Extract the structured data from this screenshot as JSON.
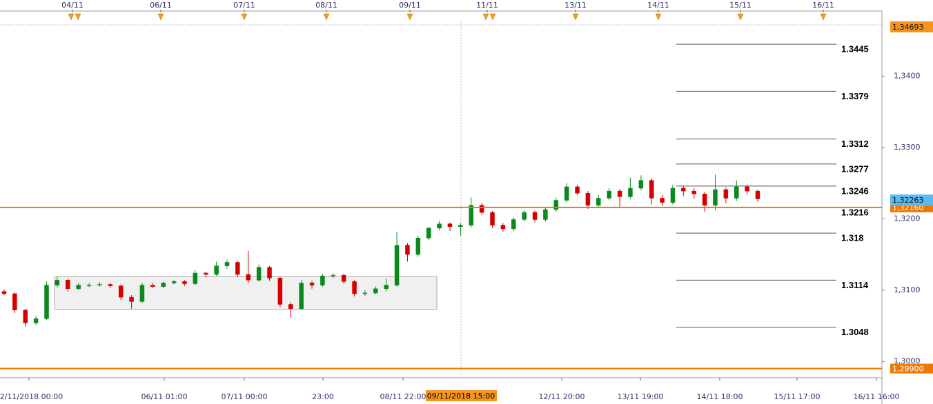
{
  "chart_data": {
    "type": "candlestick",
    "ylim": [
      1.2977,
      1.3478
    ],
    "yticks": [
      {
        "value": 1.34,
        "label": "1,3400"
      },
      {
        "value": 1.33,
        "label": "1,3300"
      },
      {
        "value": 1.32,
        "label": "1,3200"
      },
      {
        "value": 1.31,
        "label": "1,3100"
      },
      {
        "value": 1.3,
        "label": "1,3000"
      }
    ],
    "top_axis_labels": [
      "04/11",
      "06/11",
      "07/11",
      "08/11",
      "09/11",
      "11/11",
      "13/11",
      "14/11",
      "15/11",
      "16/11"
    ],
    "bottom_axis_labels": [
      "02/11/2018 00:00",
      "06/11 01:00",
      "07/11 00:00",
      "23:00",
      "08/11 22:00",
      "12/11 20:00",
      "13/11 19:00",
      "14/11 18:00",
      "15/11 17:00",
      "16/11 16:00"
    ],
    "crosshair_label": "09/11/2018 15:00",
    "up_color": "#0a8a1a",
    "down_color": "#d40000",
    "candles": [
      [
        1.3098,
        1.3101,
        1.3093,
        1.3095
      ],
      [
        1.3095,
        1.3097,
        1.3068,
        1.3072
      ],
      [
        1.3072,
        1.3074,
        1.3049,
        1.3054
      ],
      [
        1.3054,
        1.3063,
        1.3051,
        1.306
      ],
      [
        1.306,
        1.3112,
        1.3058,
        1.3107
      ],
      [
        1.3107,
        1.3119,
        1.3104,
        1.3114
      ],
      [
        1.3114,
        1.3116,
        1.3098,
        1.3102
      ],
      [
        1.3102,
        1.311,
        1.31,
        1.3107
      ],
      [
        1.3107,
        1.311,
        1.3104,
        1.3107
      ],
      [
        1.3107,
        1.3111,
        1.3105,
        1.3108
      ],
      [
        1.3108,
        1.311,
        1.3103,
        1.3106
      ],
      [
        1.3106,
        1.3108,
        1.3086,
        1.309
      ],
      [
        1.309,
        1.3093,
        1.3074,
        1.3084
      ],
      [
        1.3084,
        1.311,
        1.3082,
        1.3107
      ],
      [
        1.3107,
        1.311,
        1.3103,
        1.3105
      ],
      [
        1.3105,
        1.3112,
        1.3103,
        1.311
      ],
      [
        1.311,
        1.3114,
        1.3108,
        1.3112
      ],
      [
        1.3112,
        1.3114,
        1.3106,
        1.3109
      ],
      [
        1.3109,
        1.3128,
        1.3107,
        1.3124
      ],
      [
        1.3124,
        1.3126,
        1.3118,
        1.3122
      ],
      [
        1.3122,
        1.314,
        1.312,
        1.3134
      ],
      [
        1.3134,
        1.3143,
        1.313,
        1.3139
      ],
      [
        1.3139,
        1.3141,
        1.3118,
        1.3122
      ],
      [
        1.3122,
        1.3155,
        1.311,
        1.3114
      ],
      [
        1.3114,
        1.3136,
        1.3112,
        1.3132
      ],
      [
        1.3132,
        1.3134,
        1.3113,
        1.3117
      ],
      [
        1.3117,
        1.3119,
        1.3076,
        1.308
      ],
      [
        1.308,
        1.3083,
        1.3061,
        1.3074
      ],
      [
        1.3074,
        1.3114,
        1.3072,
        1.311
      ],
      [
        1.311,
        1.3113,
        1.3102,
        1.3107
      ],
      [
        1.3107,
        1.3123,
        1.3105,
        1.312
      ],
      [
        1.312,
        1.3124,
        1.3117,
        1.3121
      ],
      [
        1.3121,
        1.3123,
        1.3109,
        1.3112
      ],
      [
        1.3112,
        1.3114,
        1.3091,
        1.3095
      ],
      [
        1.3095,
        1.31,
        1.3092,
        1.3096
      ],
      [
        1.3096,
        1.3105,
        1.3094,
        1.3102
      ],
      [
        1.3102,
        1.3116,
        1.3098,
        1.3107
      ],
      [
        1.3107,
        1.3181,
        1.3105,
        1.3163
      ],
      [
        1.3163,
        1.3166,
        1.314,
        1.315
      ],
      [
        1.315,
        1.3176,
        1.3147,
        1.3173
      ],
      [
        1.3173,
        1.3189,
        1.317,
        1.3187
      ],
      [
        1.3187,
        1.3197,
        1.3184,
        1.3193
      ],
      [
        1.3193,
        1.3195,
        1.3183,
        1.3189
      ],
      [
        1.3189,
        1.3194,
        1.3176,
        1.3191
      ],
      [
        1.3191,
        1.323,
        1.3188,
        1.3219
      ],
      [
        1.3219,
        1.3222,
        1.3205,
        1.3209
      ],
      [
        1.3209,
        1.3211,
        1.3187,
        1.3191
      ],
      [
        1.3191,
        1.3194,
        1.3182,
        1.3186
      ],
      [
        1.3186,
        1.3202,
        1.3183,
        1.3199
      ],
      [
        1.3199,
        1.3212,
        1.3196,
        1.3209
      ],
      [
        1.3209,
        1.3212,
        1.3195,
        1.3199
      ],
      [
        1.3199,
        1.3217,
        1.3196,
        1.3213
      ],
      [
        1.3213,
        1.323,
        1.321,
        1.3226
      ],
      [
        1.3226,
        1.325,
        1.3223,
        1.3245
      ],
      [
        1.3245,
        1.3248,
        1.3233,
        1.3236
      ],
      [
        1.3236,
        1.3239,
        1.3214,
        1.3219
      ],
      [
        1.3219,
        1.3233,
        1.3216,
        1.3229
      ],
      [
        1.3229,
        1.3243,
        1.3226,
        1.3239
      ],
      [
        1.3239,
        1.3242,
        1.3216,
        1.3231
      ],
      [
        1.3231,
        1.3258,
        1.3228,
        1.3243
      ],
      [
        1.3243,
        1.3261,
        1.324,
        1.3254
      ],
      [
        1.3254,
        1.3257,
        1.322,
        1.3229
      ],
      [
        1.3229,
        1.3233,
        1.3218,
        1.3223
      ],
      [
        1.3223,
        1.3248,
        1.322,
        1.3243
      ],
      [
        1.3243,
        1.3246,
        1.3232,
        1.3239
      ],
      [
        1.3239,
        1.3243,
        1.3228,
        1.3235
      ],
      [
        1.3235,
        1.3238,
        1.321,
        1.3219
      ],
      [
        1.3219,
        1.3262,
        1.3212,
        1.3241
      ],
      [
        1.3241,
        1.3244,
        1.3222,
        1.3229
      ],
      [
        1.3229,
        1.3254,
        1.3225,
        1.3245
      ],
      [
        1.3245,
        1.3248,
        1.3234,
        1.3239
      ],
      [
        1.3239,
        1.3241,
        1.3224,
        1.3228
      ]
    ],
    "range_box": {
      "high": 1.3119,
      "low": 1.3073
    },
    "levels": [
      1.3445,
      1.3379,
      1.3312,
      1.3277,
      1.3246,
      1.3216,
      1.318,
      1.3114,
      1.3048
    ],
    "horizontal_lines": [
      {
        "value": 1.3216,
        "label": "1,32160",
        "color": "#f07800"
      },
      {
        "value": 1.299,
        "label": "1,29900",
        "color": "#f07800"
      }
    ],
    "price_tags": [
      {
        "value": 1.34693,
        "label": "1,34693",
        "color": "#f7941d"
      },
      {
        "value": 1.32263,
        "label": "1,32263",
        "color": "#5bb8f0"
      }
    ]
  }
}
